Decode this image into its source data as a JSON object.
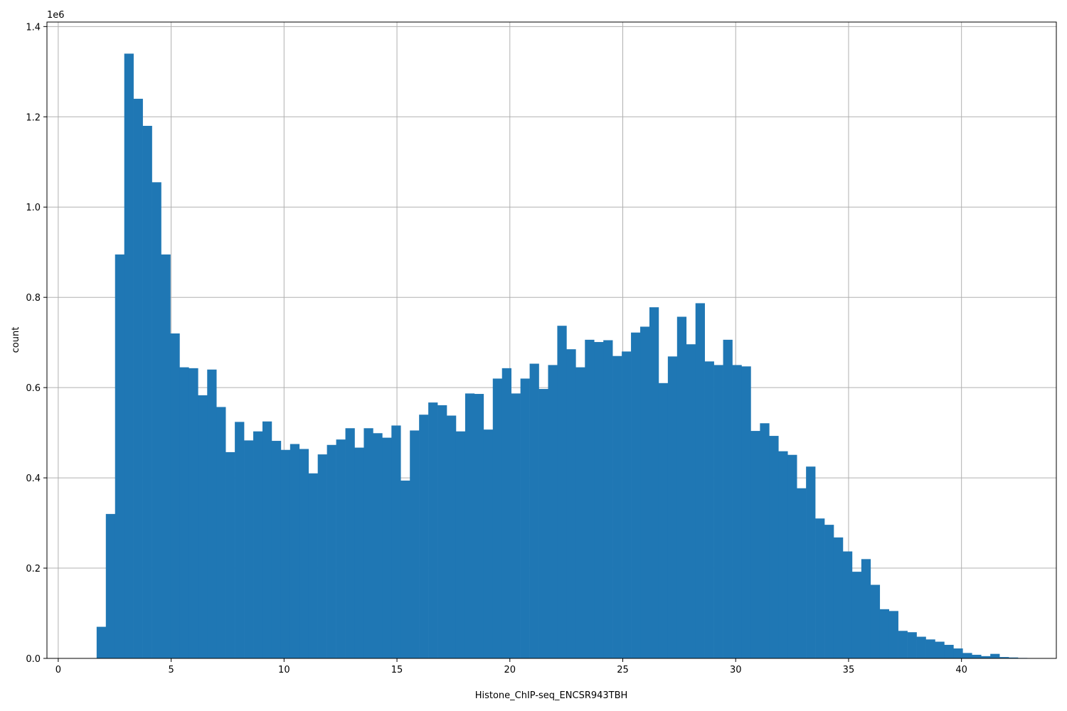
{
  "chart_data": {
    "type": "bar",
    "title": "",
    "xlabel": "Histone_ChIP-seq_ENCSR943TBH",
    "ylabel": "count",
    "y_offset_label": "1e6",
    "xlim": [
      -0.5,
      44.2
    ],
    "ylim": [
      0,
      1.41
    ],
    "grid": true,
    "bar_color": "#1f77b4",
    "x_ticks": [
      0,
      5,
      10,
      15,
      20,
      25,
      30,
      35,
      40
    ],
    "y_ticks": [
      0.0,
      0.2,
      0.4,
      0.6,
      0.8,
      1.0,
      1.2,
      1.4
    ],
    "bin_edges_start": 1.7,
    "bin_width": 0.408,
    "values": [
      0.07,
      0.32,
      0.895,
      1.34,
      1.24,
      1.18,
      1.055,
      0.895,
      0.72,
      0.645,
      0.643,
      0.583,
      0.64,
      0.557,
      0.457,
      0.524,
      0.483,
      0.503,
      0.525,
      0.482,
      0.462,
      0.475,
      0.464,
      0.41,
      0.452,
      0.473,
      0.485,
      0.51,
      0.467,
      0.51,
      0.499,
      0.489,
      0.516,
      0.394,
      0.505,
      0.54,
      0.567,
      0.561,
      0.538,
      0.503,
      0.587,
      0.586,
      0.507,
      0.62,
      0.643,
      0.587,
      0.62,
      0.653,
      0.597,
      0.65,
      0.737,
      0.685,
      0.645,
      0.706,
      0.701,
      0.705,
      0.67,
      0.68,
      0.722,
      0.735,
      0.778,
      0.61,
      0.669,
      0.757,
      0.696,
      0.787,
      0.658,
      0.65,
      0.706,
      0.65,
      0.647,
      0.504,
      0.521,
      0.493,
      0.459,
      0.451,
      0.377,
      0.425,
      0.31,
      0.296,
      0.268,
      0.237,
      0.192,
      0.22,
      0.163,
      0.109,
      0.105,
      0.061,
      0.058,
      0.048,
      0.042,
      0.037,
      0.03,
      0.022,
      0.012,
      0.008,
      0.005,
      0.01,
      0.003,
      0.002,
      0.001
    ]
  }
}
